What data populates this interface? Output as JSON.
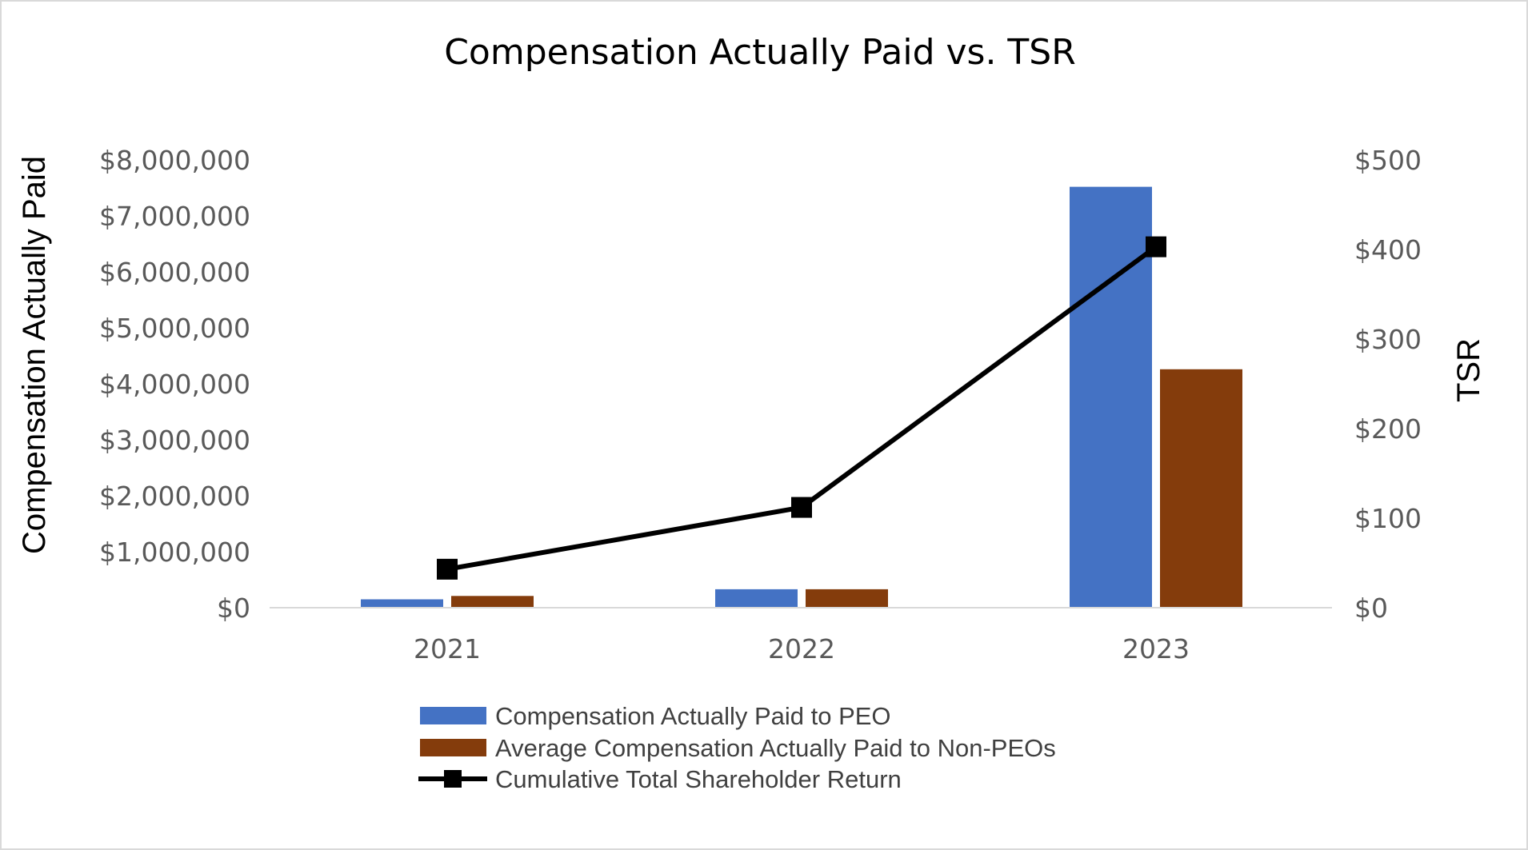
{
  "chart_data": {
    "type": "bar",
    "title": "Compensation Actually Paid vs. TSR",
    "categories": [
      "2021",
      "2022",
      "2023"
    ],
    "ylabel": "Compensation Actually Paid",
    "y2label": "TSR",
    "ylim": [
      0,
      8000000
    ],
    "y2lim": [
      0,
      500
    ],
    "yticks": [
      "$0",
      "$1,000,000",
      "$2,000,000",
      "$3,000,000",
      "$4,000,000",
      "$5,000,000",
      "$6,000,000",
      "$7,000,000",
      "$8,000,000"
    ],
    "y2ticks": [
      "$0",
      "$100",
      "$200",
      "$300",
      "$400",
      "$500"
    ],
    "grid": false,
    "legend_position": "bottom",
    "series": [
      {
        "name": "Compensation Actually Paid to PEO",
        "type": "bar",
        "axis": "left",
        "color": "#4472C4",
        "values": [
          150000,
          330000,
          7520000
        ]
      },
      {
        "name": "Average Compensation Actually Paid to Non-PEOs",
        "type": "bar",
        "axis": "left",
        "color": "#843C0C",
        "values": [
          210000,
          330000,
          4260000
        ]
      },
      {
        "name": "Cumulative Total Shareholder Return",
        "type": "line",
        "axis": "right",
        "color": "#000000",
        "marker": "square",
        "values": [
          43,
          112,
          403
        ]
      }
    ]
  }
}
